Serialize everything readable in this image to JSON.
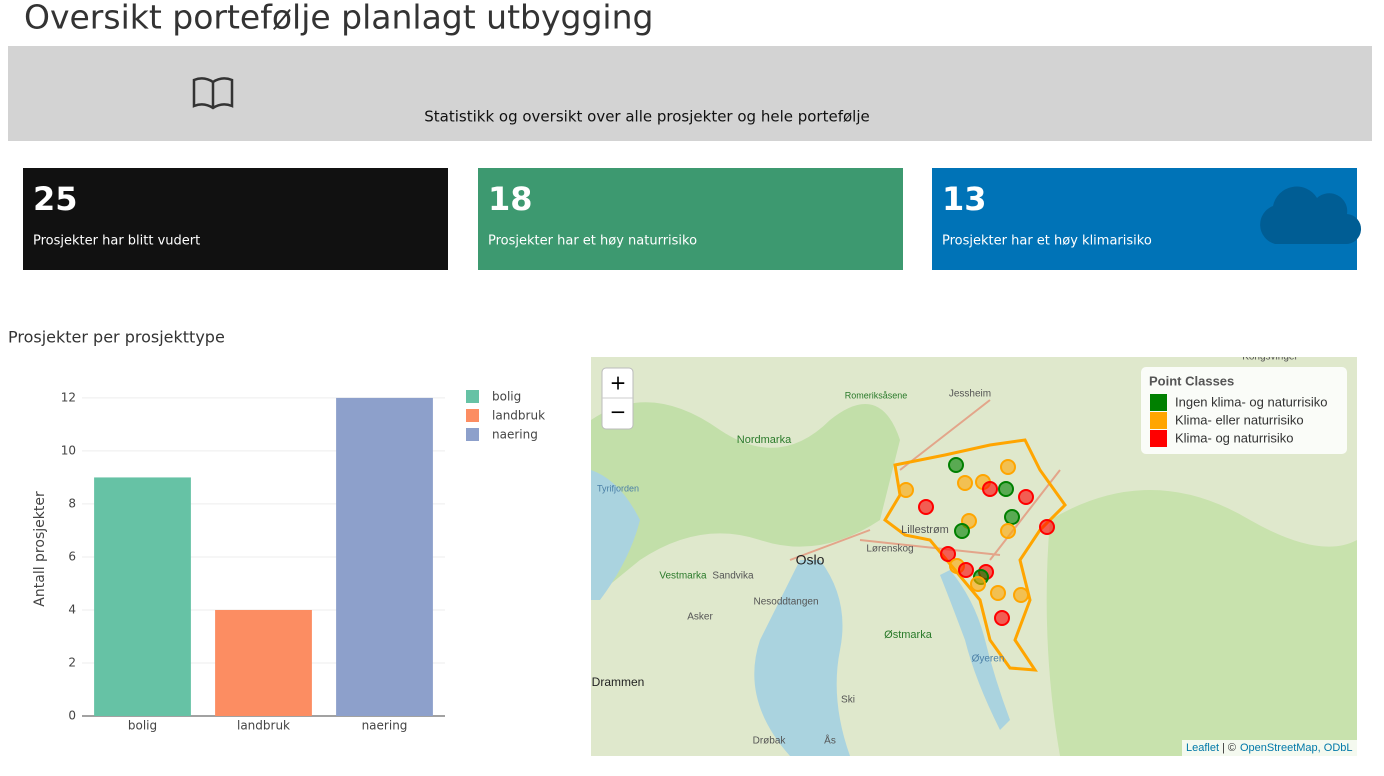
{
  "header": {
    "title": "Oversikt portefølje planlagt utbygging"
  },
  "banner": {
    "text": "Statistikk og oversikt over alle prosjekter og hele portefølje"
  },
  "value_boxes": [
    {
      "value": "25",
      "text": "Prosjekter har blitt vudert",
      "color": "#111111"
    },
    {
      "value": "18",
      "text": "Prosjekter har et høy naturrisiko",
      "color": "#3d9970"
    },
    {
      "value": "13",
      "text": "Prosjekter har et høy klimarisiko",
      "color": "#0073b7"
    }
  ],
  "chart_data": {
    "type": "bar",
    "title": "Prosjekter per prosjekttype",
    "categories": [
      "bolig",
      "landbruk",
      "naering"
    ],
    "values": [
      9,
      4,
      12
    ],
    "colors": [
      "#66c2a5",
      "#fc8d62",
      "#8da0cb"
    ],
    "y_label": "Antall prosjekter",
    "ylim": [
      0,
      12.6
    ],
    "yticks": [
      0,
      2,
      4,
      6,
      8,
      10,
      12
    ],
    "grid": true,
    "legend": "top-right"
  },
  "map": {
    "zoom_in": "+",
    "zoom_out": "−",
    "legend": {
      "title": "Point Classes",
      "items": [
        {
          "label": "Ingen klima- og naturrisiko",
          "color": "#008000"
        },
        {
          "label": "Klima- eller naturrisiko",
          "color": "#ffa500"
        },
        {
          "label": "Klima- og naturrisiko",
          "color": "#ff0000"
        }
      ]
    },
    "places": [
      "Oslo",
      "Lillestrøm",
      "Lørenskog",
      "Sandvika",
      "Asker",
      "Nesoddtangen",
      "Drammen",
      "Ski",
      "Ås",
      "Drøbak",
      "Øyeren",
      "Østmarka",
      "Vestmarka",
      "Nordmarka",
      "Romeriksåsene",
      "Jessheim",
      "Kongsvinger",
      "Tyrifjorden"
    ],
    "attribution": {
      "leaflet": "Leaflet",
      "sep": "| ©",
      "osm": "OpenStreetMap, ODbL"
    }
  }
}
